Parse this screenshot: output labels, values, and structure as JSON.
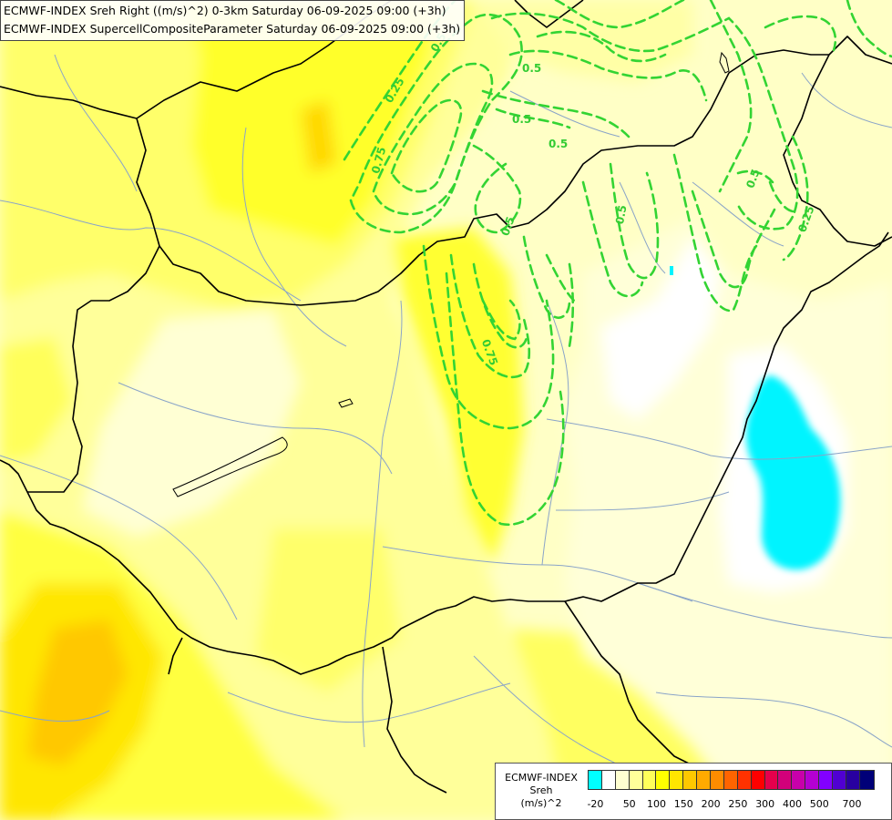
{
  "header": {
    "line1": "ECMWF-INDEX Sreh Right ((m/s)^2) 0-3km Saturday 06-09-2025 09:00 (+3h)",
    "line2": "ECMWF-INDEX SupercellCompositeParameter Saturday 06-09-2025 09:00 (+3h)"
  },
  "legend": {
    "title1": "ECMWF-INDEX",
    "title2": "Sreh",
    "title3": "(m/s)^2",
    "colors": [
      "#00ffff",
      "#ffffff",
      "#ffffd0",
      "#ffff9a",
      "#ffff5a",
      "#ffff00",
      "#ffe600",
      "#ffc800",
      "#ffaa00",
      "#ff8c00",
      "#ff6400",
      "#ff3200",
      "#ff0000",
      "#e6004c",
      "#d2007a",
      "#c800aa",
      "#b400d2",
      "#8200ff",
      "#5000d2",
      "#2800a0",
      "#000078"
    ],
    "labels": [
      "-20",
      "50",
      "100",
      "150",
      "200",
      "250",
      "300",
      "400",
      "500",
      "700"
    ]
  },
  "contour_labels": [
    "0.5",
    "0.5",
    "0.5",
    "0.75",
    "0.5",
    "0.5",
    "0.25",
    "0.75",
    "0.5",
    "0.25",
    "0.5"
  ]
}
